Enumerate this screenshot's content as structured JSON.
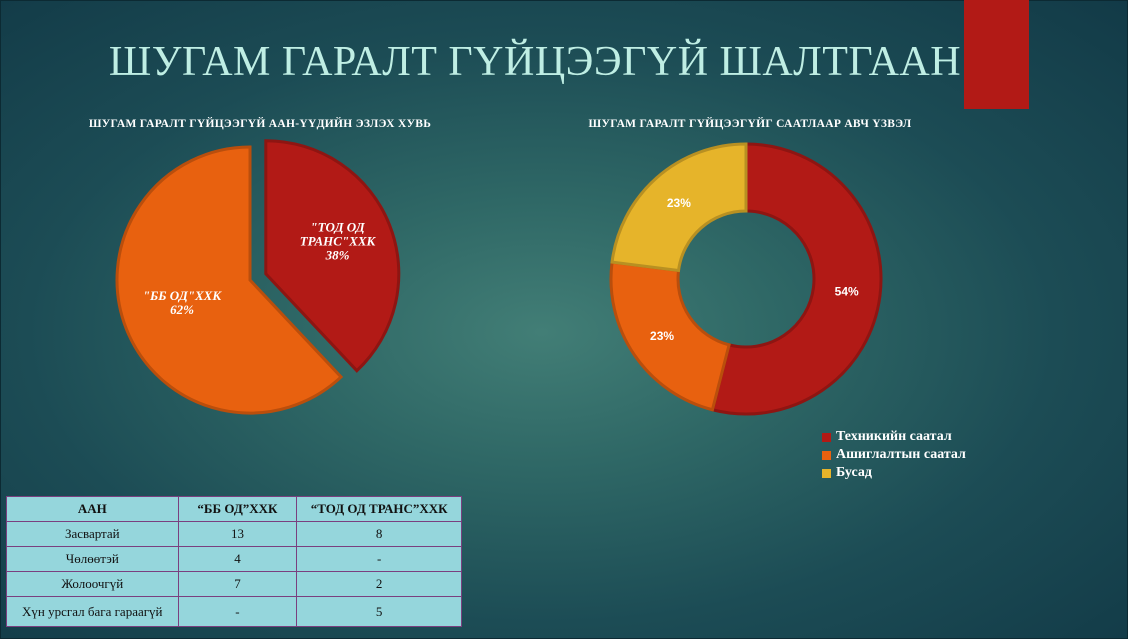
{
  "slide": {
    "title": "ШУГАМ ГАРАЛТ ГҮЙЦЭЭГҮЙ ШАЛТГААН"
  },
  "colors": {
    "accent": "#b21a16",
    "dark_red": "#b21a16",
    "orange": "#e8610f",
    "yellow": "#e6b42a",
    "table_bg": "#95d6dc",
    "table_border": "#7a3f7f",
    "title": "#bfeee4"
  },
  "chart_data": [
    {
      "type": "pie",
      "title": "ШУГАМ ГАРАЛТ ГҮЙЦЭЭГҮЙ ААН-ҮҮДИЙН ЭЗЛЭХ ХУВЬ",
      "slices": [
        {
          "name": "\"ТОД ОД ТРАНС\"ХХК",
          "value": 38,
          "label": "38%",
          "color": "#b21a16",
          "exploded": true
        },
        {
          "name": "\"ББ ОД\"ХХК",
          "value": 62,
          "label": "62%",
          "color": "#e8610f",
          "exploded": false
        }
      ]
    },
    {
      "type": "pie",
      "subtype": "doughnut",
      "title": "ШУГАМ ГАРАЛТ ГҮЙЦЭЭГҮЙГ СААТЛААР АВЧ ҮЗВЭЛ",
      "slices": [
        {
          "name": "Техникийн саатал",
          "value": 54,
          "label": "54%",
          "color": "#b21a16"
        },
        {
          "name": "Ашиглалтын саатал",
          "value": 23,
          "label": "23%",
          "color": "#e8610f"
        },
        {
          "name": "Бусад",
          "value": 23,
          "label": "23%",
          "color": "#e6b42a"
        }
      ],
      "legend_position": "bottom-right"
    }
  ],
  "table": {
    "headers": [
      "ААН",
      "“ББ ОД”ХХК",
      "“ТОД ОД ТРАНС”ХХК"
    ],
    "rows": [
      [
        "Засвартай",
        "13",
        "8"
      ],
      [
        "Чөлөөтэй",
        "4",
        "-"
      ],
      [
        "Жолоочгүй",
        "7",
        "2"
      ],
      [
        "Хүн урсгал бага гараагүй",
        "-",
        "5"
      ]
    ]
  }
}
